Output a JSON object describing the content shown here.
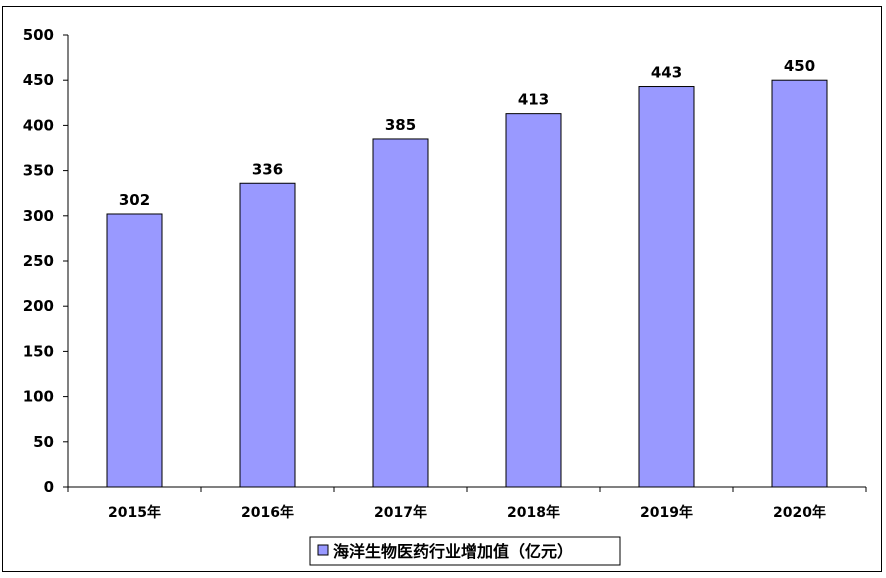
{
  "chart_data": {
    "type": "bar",
    "categories": [
      "2015年",
      "2016年",
      "2017年",
      "2018年",
      "2019年",
      "2020年"
    ],
    "series": [
      {
        "name": "海洋生物医药行业增加值（亿元）",
        "values": [
          302,
          336,
          385,
          413,
          443,
          450
        ]
      }
    ],
    "ylim": [
      0,
      500
    ],
    "yticks": [
      0,
      50,
      100,
      150,
      200,
      250,
      300,
      350,
      400,
      450,
      500
    ],
    "grid": false,
    "legend_position": "bottom",
    "data_labels": true,
    "colors": {
      "bar_fill": "#9999ff",
      "bar_stroke": "#000000",
      "axis": "#000000"
    }
  }
}
